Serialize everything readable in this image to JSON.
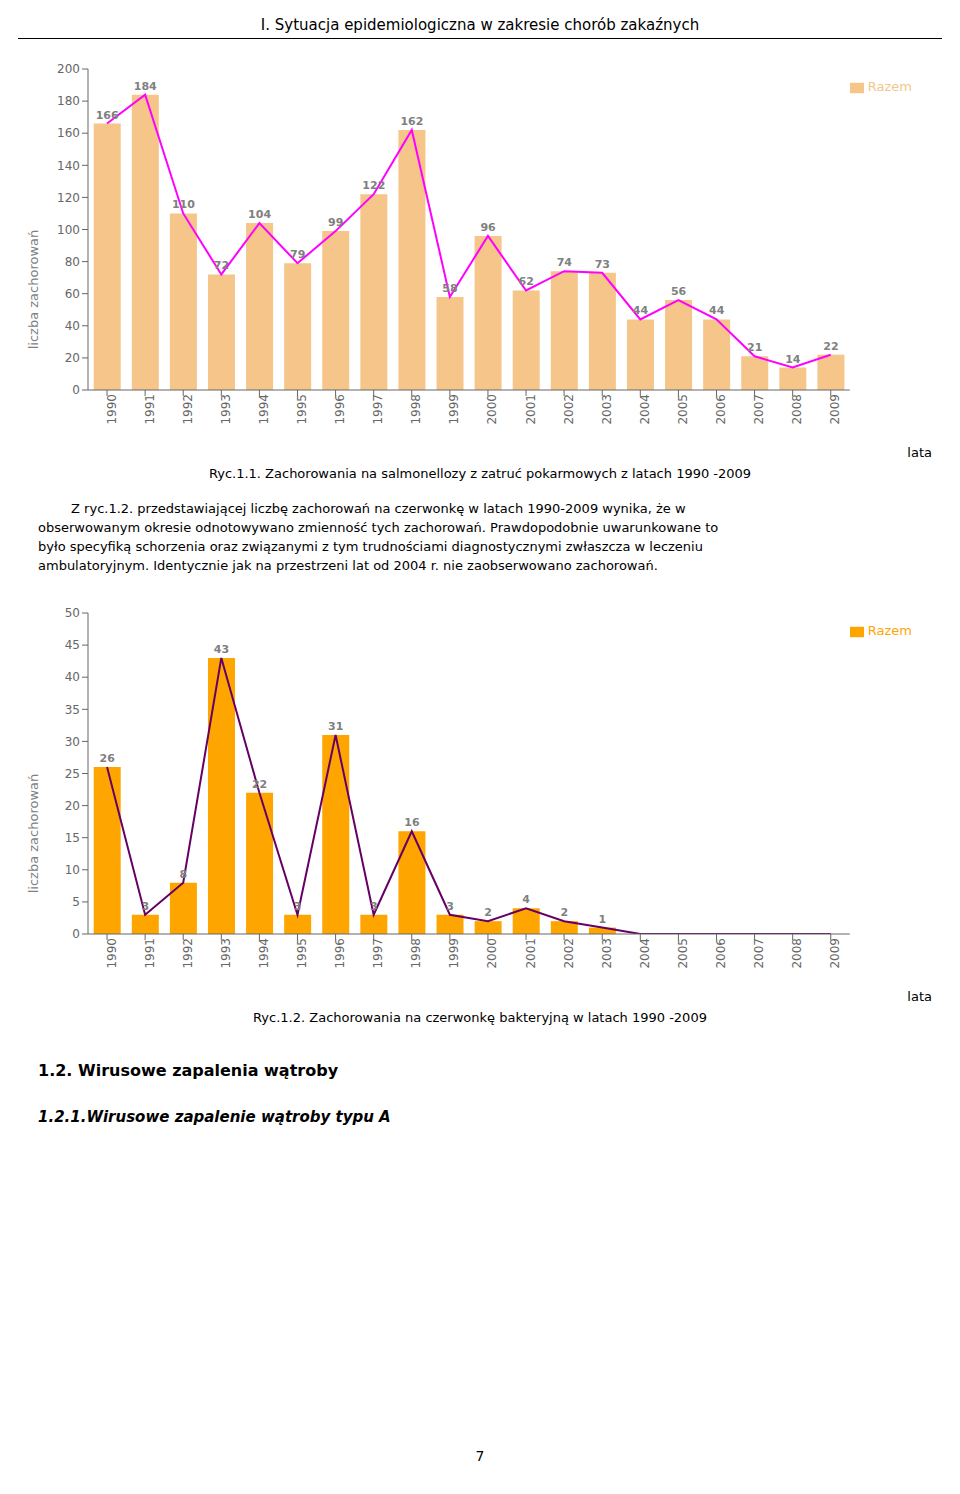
{
  "page_title": "I. Sytuacja epidemiologiczna w zakresie chorób zakaźnych",
  "chart_data": [
    {
      "type": "bar",
      "title": "Ryc.1.1. Zachorowania na salmonellozy z zatruć pokarmowych z latach 1990 -2009",
      "x_label": "lata",
      "y_label": "liczba zachorowań",
      "categories": [
        "1990",
        "1991",
        "1992",
        "1993",
        "1994",
        "1995",
        "1996",
        "1997",
        "1998",
        "1999",
        "2000",
        "2001",
        "2002",
        "2003",
        "2004",
        "2005",
        "2006",
        "2007",
        "2008",
        "2009"
      ],
      "series": [
        {
          "name": "Razem",
          "type": "bar",
          "color": "#F5C58A",
          "values": [
            166,
            184,
            110,
            72,
            104,
            79,
            99,
            122,
            162,
            58,
            96,
            62,
            74,
            73,
            44,
            56,
            44,
            21,
            14,
            22
          ]
        },
        {
          "type": "line",
          "color": "#FF00FF",
          "values": [
            166,
            184,
            110,
            72,
            104,
            79,
            99,
            122,
            162,
            58,
            96,
            62,
            74,
            73,
            44,
            56,
            44,
            21,
            14,
            22
          ]
        }
      ],
      "ylim": [
        0,
        200
      ],
      "yticks": [
        0,
        20,
        40,
        60,
        80,
        100,
        120,
        140,
        160,
        180,
        200
      ],
      "data_labels": true,
      "legend": "upper right",
      "grid": false
    },
    {
      "type": "bar",
      "title": "Ryc.1.2. Zachorowania na czerwonkę bakteryjną w latach 1990 -2009",
      "x_label": "lata",
      "y_label": "liczba zachorowań",
      "categories": [
        "1990",
        "1991",
        "1992",
        "1993",
        "1994",
        "1995",
        "1996",
        "1997",
        "1998",
        "1999",
        "2000",
        "2001",
        "2002",
        "2003",
        "2004",
        "2005",
        "2006",
        "2007",
        "2008",
        "2009"
      ],
      "series": [
        {
          "name": "Razem",
          "type": "bar",
          "color": "#FFA500",
          "values": [
            26,
            3,
            8,
            43,
            22,
            3,
            31,
            3,
            16,
            3,
            2,
            4,
            2,
            1,
            0,
            0,
            0,
            0,
            0,
            0
          ]
        },
        {
          "type": "line",
          "color": "#660066",
          "values": [
            26,
            3,
            8,
            43,
            22,
            3,
            31,
            3,
            16,
            3,
            2,
            4,
            2,
            1,
            0,
            0,
            0,
            0,
            0,
            0
          ]
        }
      ],
      "ylim": [
        0,
        50
      ],
      "yticks": [
        0,
        5,
        10,
        15,
        20,
        25,
        30,
        35,
        40,
        45,
        50
      ],
      "data_labels": true,
      "legend": "upper right",
      "grid": false
    }
  ],
  "text_lines": [
    "        Z ryc.1.2. przedstawiającej liczbę zachorowań na czerwonkę w latach 1990-2009 wynika, że w",
    "obserwowanym okresie odnotowywano zmienność tych zachorowań. Prawdopodobnie uwarunkowane to",
    "było specyfiką schorzenia oraz związanymi z tym trudnościami diagnostycznymi zwłaszcza w leczeniu",
    "ambulatoryjnym. Identycznie jak na przestrzeni lat od 2004 r. nie zaobserwowano zachorowań."
  ],
  "section_title": "1.2. Wirusowe zapalenia wątroby",
  "subsection_title": "1.2.1.Wirusowe zapalenie wątroby typu A",
  "page_number": "7"
}
